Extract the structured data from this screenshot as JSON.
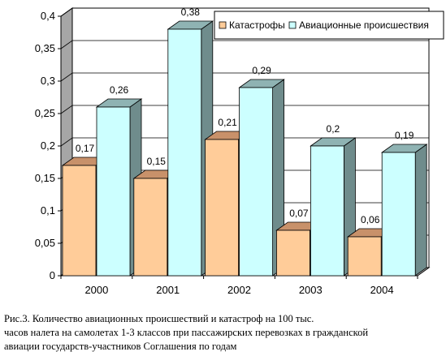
{
  "chart_data": {
    "type": "bar",
    "categories": [
      "2000",
      "2001",
      "2002",
      "2003",
      "2004"
    ],
    "series": [
      {
        "name": "Катастрофы",
        "values": [
          0.17,
          0.15,
          0.21,
          0.07,
          0.06
        ],
        "labels": [
          "0,17",
          "0,15",
          "0,21",
          "0,07",
          "0,06"
        ]
      },
      {
        "name": "Авиационные происшествия",
        "values": [
          0.26,
          0.38,
          0.29,
          0.2,
          0.19
        ],
        "labels": [
          "0,26",
          "0,38",
          "0,29",
          "0,2",
          "0,19"
        ]
      }
    ],
    "ylim": [
      0,
      0.4
    ],
    "yticks": [
      "0",
      "0,05",
      "0,1",
      "0,15",
      "0,2",
      "0,25",
      "0,3",
      "0,35",
      "0,4"
    ],
    "grid": true,
    "legend_position": "top-right",
    "three_d": true
  },
  "colors": {
    "series": [
      "#FFCC99",
      "#CCFFFF"
    ],
    "series_top": [
      "#C8916A",
      "#8FB3B3"
    ],
    "series_side": [
      "#9E7350",
      "#6F8C8C"
    ],
    "wall": "#ffffff",
    "floor": "#c0c0c0",
    "side_wall": "#a6a6a6",
    "grid": "#000000"
  },
  "caption": {
    "line1": "Рис.3.  Количество авиационных происшествий и катастроф на 100 тыс.",
    "line2": "часов налета на самолетах 1-3 классов при пассажирских перевозках в гражданской",
    "line3": "авиации государств-участников Соглашения по годам"
  }
}
